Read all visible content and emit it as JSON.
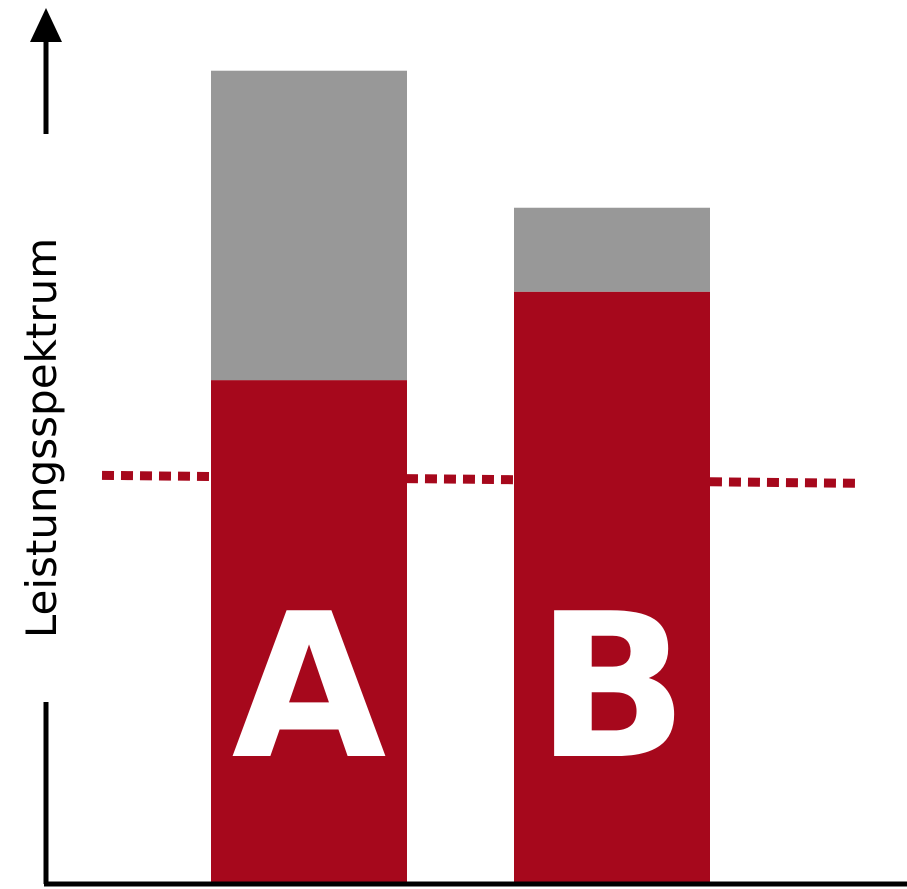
{
  "chart_data": {
    "type": "bar",
    "stacked": true,
    "ylabel": "Leistungsspektrum",
    "xlabel": "",
    "categories": [
      "A",
      "B"
    ],
    "series": [
      {
        "values": [
          57,
          67
        ]
      },
      {
        "values": [
          35,
          9.5
        ]
      }
    ],
    "reference_line": {
      "value": 46,
      "style": "dotted"
    },
    "ylim": [
      0,
      100
    ],
    "grid": false,
    "colors": {
      "primary": "#a6081c",
      "secondary": "#989898",
      "axis": "#000000",
      "bar_label": "#ffffff"
    }
  }
}
